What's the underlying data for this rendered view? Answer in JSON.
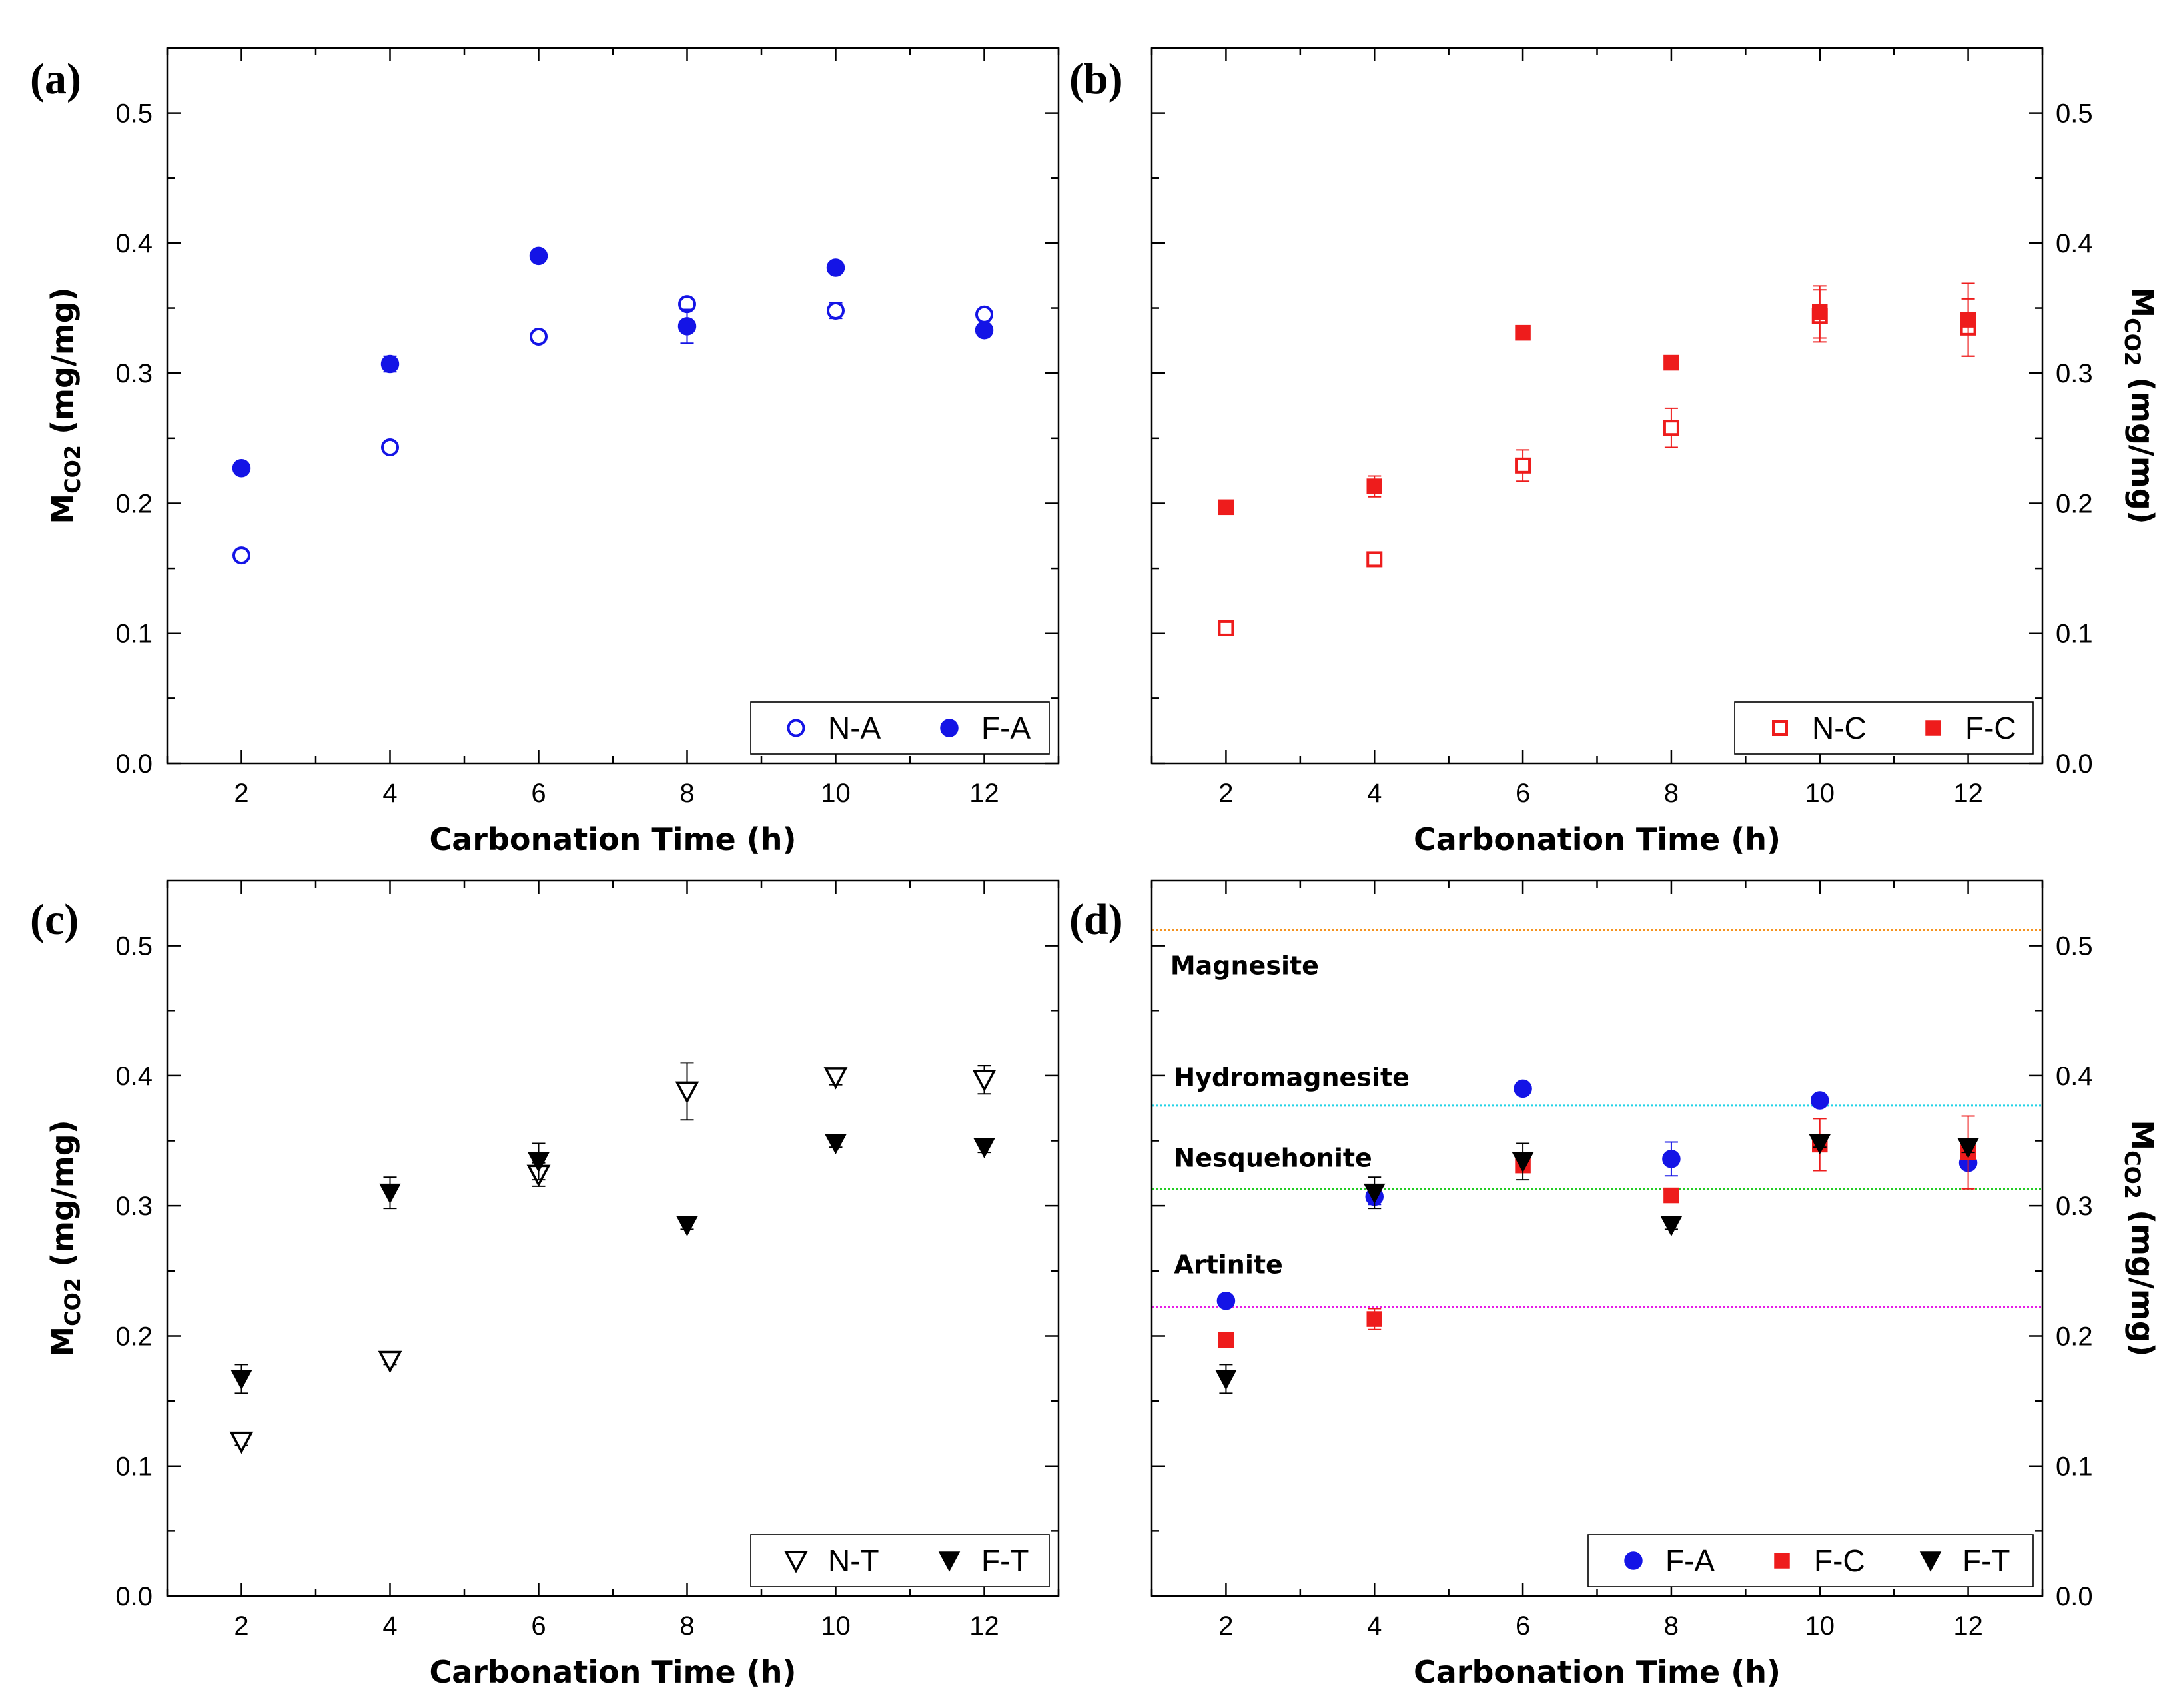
{
  "chart_data": [
    {
      "panel": "(a)",
      "type": "scatter",
      "xlabel": "Carbonation Time (h)",
      "ylabel": "MCO2 (mg/mg)",
      "ylabel_main": "M",
      "ylabel_sub": "CO2",
      "ylabel_unit": " (mg/mg)",
      "xlim": [
        1,
        13
      ],
      "ylim": [
        0,
        0.55
      ],
      "xticks": [
        2,
        4,
        6,
        8,
        10,
        12
      ],
      "yticks": [
        0.0,
        0.1,
        0.2,
        0.3,
        0.4,
        0.5
      ],
      "ytick_labels": [
        "0.0",
        "0.1",
        "0.2",
        "0.3",
        "0.4",
        "0.5"
      ],
      "y_axis_side": "left",
      "legend_position": "bottom-right",
      "series": [
        {
          "name": "N-A",
          "marker": "circle",
          "filled": false,
          "color": "#1414e6",
          "x": [
            2,
            4,
            6,
            8,
            10,
            12
          ],
          "y": [
            0.16,
            0.243,
            0.328,
            0.353,
            0.348,
            0.345
          ],
          "err": [
            0.003,
            0.003,
            0.003,
            0.004,
            0.006,
            0.004
          ]
        },
        {
          "name": "F-A",
          "marker": "circle",
          "filled": true,
          "color": "#1414e6",
          "x": [
            2,
            4,
            6,
            8,
            10,
            12
          ],
          "y": [
            0.227,
            0.307,
            0.39,
            0.336,
            0.381,
            0.333
          ],
          "err": [
            0.004,
            0.006,
            0.004,
            0.013,
            0.004,
            0.004
          ]
        }
      ]
    },
    {
      "panel": "(b)",
      "type": "scatter",
      "xlabel": "Carbonation Time (h)",
      "ylabel": "MCO2 (mg/mg)",
      "ylabel_main": "M",
      "ylabel_sub": "CO2",
      "ylabel_unit": " (mg/mg)",
      "xlim": [
        1,
        13
      ],
      "ylim": [
        0,
        0.55
      ],
      "xticks": [
        2,
        4,
        6,
        8,
        10,
        12
      ],
      "yticks": [
        0.0,
        0.1,
        0.2,
        0.3,
        0.4,
        0.5
      ],
      "ytick_labels": [
        "0.0",
        "0.1",
        "0.2",
        "0.3",
        "0.4",
        "0.5"
      ],
      "y_axis_side": "right",
      "legend_position": "bottom-right",
      "series": [
        {
          "name": "N-C",
          "marker": "square",
          "filled": false,
          "color": "#ee1c1c",
          "x": [
            2,
            4,
            6,
            8,
            10,
            12
          ],
          "y": [
            0.104,
            0.157,
            0.229,
            0.258,
            0.344,
            0.335
          ],
          "err": [
            0.003,
            0.003,
            0.012,
            0.015,
            0.02,
            0.022
          ]
        },
        {
          "name": "F-C",
          "marker": "square",
          "filled": true,
          "color": "#ee1c1c",
          "x": [
            2,
            4,
            6,
            8,
            10,
            12
          ],
          "y": [
            0.197,
            0.213,
            0.331,
            0.308,
            0.347,
            0.341
          ],
          "err": [
            0.003,
            0.008,
            0.003,
            0.003,
            0.02,
            0.028
          ]
        }
      ]
    },
    {
      "panel": "(c)",
      "type": "scatter",
      "xlabel": "Carbonation Time (h)",
      "ylabel": "MCO2 (mg/mg)",
      "ylabel_main": "M",
      "ylabel_sub": "CO2",
      "ylabel_unit": " (mg/mg)",
      "xlim": [
        1,
        13
      ],
      "ylim": [
        0,
        0.55
      ],
      "xticks": [
        2,
        4,
        6,
        8,
        10,
        12
      ],
      "yticks": [
        0.0,
        0.1,
        0.2,
        0.3,
        0.4,
        0.5
      ],
      "ytick_labels": [
        "0.0",
        "0.1",
        "0.2",
        "0.3",
        "0.4",
        "0.5"
      ],
      "y_axis_side": "left",
      "legend_position": "bottom-right",
      "series": [
        {
          "name": "N-T",
          "marker": "triangle-down",
          "filled": false,
          "color": "#000000",
          "x": [
            2,
            4,
            6,
            8,
            10,
            12
          ],
          "y": [
            0.119,
            0.181,
            0.324,
            0.388,
            0.399,
            0.397
          ],
          "err": [
            0.003,
            0.003,
            0.009,
            0.022,
            0.006,
            0.011
          ]
        },
        {
          "name": "F-T",
          "marker": "triangle-down",
          "filled": true,
          "color": "#000000",
          "x": [
            2,
            4,
            6,
            8,
            10,
            12
          ],
          "y": [
            0.167,
            0.31,
            0.334,
            0.285,
            0.348,
            0.345
          ],
          "err": [
            0.011,
            0.012,
            0.014,
            0.003,
            0.003,
            0.004
          ]
        }
      ]
    },
    {
      "panel": "(d)",
      "type": "scatter",
      "xlabel": "Carbonation Time (h)",
      "ylabel": "MCO2 (mg/mg)",
      "ylabel_main": "M",
      "ylabel_sub": "CO2",
      "ylabel_unit": " (mg/mg)",
      "xlim": [
        1,
        13
      ],
      "ylim": [
        0,
        0.55
      ],
      "xticks": [
        2,
        4,
        6,
        8,
        10,
        12
      ],
      "yticks": [
        0.0,
        0.1,
        0.2,
        0.3,
        0.4,
        0.5
      ],
      "ytick_labels": [
        "0.0",
        "0.1",
        "0.2",
        "0.3",
        "0.4",
        "0.5"
      ],
      "y_axis_side": "right",
      "legend_position": "bottom-right",
      "reference_lines": [
        {
          "label": "Magnesite",
          "y": 0.512,
          "color": "#f5921e",
          "label_x": 1.25,
          "label_y": 0.478
        },
        {
          "label": "Hydromagnesite",
          "y": 0.377,
          "color": "#22d3e6",
          "label_x": 1.3,
          "label_y": 0.392
        },
        {
          "label": "Nesquehonite",
          "y": 0.313,
          "color": "#22cc22",
          "label_x": 1.3,
          "label_y": 0.33
        },
        {
          "label": "Artinite",
          "y": 0.222,
          "color": "#e81ae8",
          "label_x": 1.3,
          "label_y": 0.248
        }
      ],
      "series": [
        {
          "name": "F-A",
          "marker": "circle",
          "filled": true,
          "color": "#1414e6",
          "x": [
            2,
            4,
            6,
            8,
            10,
            12
          ],
          "y": [
            0.227,
            0.307,
            0.39,
            0.336,
            0.381,
            0.333
          ],
          "err": [
            0.004,
            0.006,
            0.004,
            0.013,
            0.004,
            0.004
          ]
        },
        {
          "name": "F-C",
          "marker": "square",
          "filled": true,
          "color": "#ee1c1c",
          "x": [
            2,
            4,
            6,
            8,
            10,
            12
          ],
          "y": [
            0.197,
            0.213,
            0.331,
            0.308,
            0.347,
            0.341
          ],
          "err": [
            0.003,
            0.008,
            0.003,
            0.003,
            0.02,
            0.028
          ]
        },
        {
          "name": "F-T",
          "marker": "triangle-down",
          "filled": true,
          "color": "#000000",
          "x": [
            2,
            4,
            6,
            8,
            10,
            12
          ],
          "y": [
            0.167,
            0.31,
            0.334,
            0.285,
            0.348,
            0.345
          ],
          "err": [
            0.011,
            0.012,
            0.014,
            0.003,
            0.003,
            0.004
          ]
        }
      ]
    }
  ]
}
